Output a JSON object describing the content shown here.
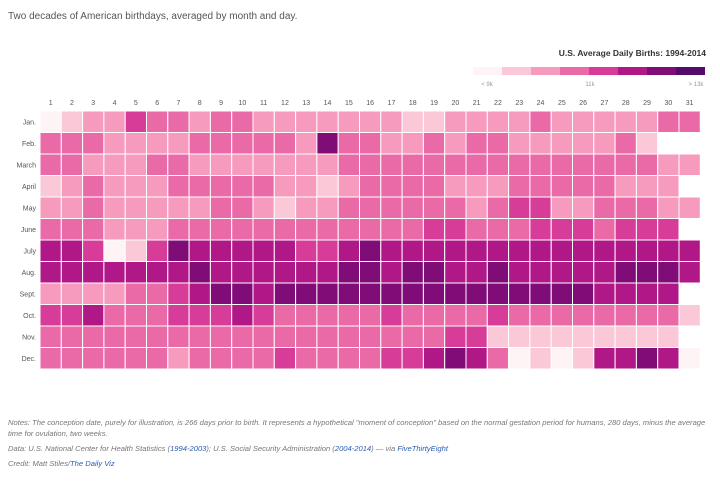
{
  "subtitle": "Two decades of American birthdays, averaged by month and day.",
  "colors": {
    "scale": [
      "#fef4f5",
      "#fbc8d8",
      "#f69bbd",
      "#ea6aa8",
      "#d63c98",
      "#b01887",
      "#800c78",
      "#560b6c"
    ],
    "empty": "#ffffff",
    "grid_line": "#ffffff"
  },
  "chart_data": {
    "type": "heatmap",
    "title": "U.S. Average Daily Births: 1994-2014",
    "x_labels": [
      "1",
      "2",
      "3",
      "4",
      "5",
      "6",
      "7",
      "8",
      "9",
      "10",
      "11",
      "12",
      "13",
      "14",
      "15",
      "16",
      "17",
      "18",
      "19",
      "20",
      "21",
      "22",
      "23",
      "24",
      "25",
      "26",
      "27",
      "28",
      "29",
      "30",
      "31"
    ],
    "y_labels": [
      "Jan.",
      "Feb.",
      "March",
      "April",
      "May",
      "June",
      "July",
      "Aug.",
      "Sept.",
      "Oct.",
      "Nov.",
      "Dec."
    ],
    "legend": {
      "min_label": "< 9k",
      "mid_label": "11k",
      "max_label": "> 13k",
      "placement": "top-right"
    },
    "value_levels": "0 = lowest (< 9k) … 7 = highest (> 13k); null = no date",
    "values": [
      [
        0,
        1,
        2,
        2,
        4,
        3,
        3,
        2,
        3,
        3,
        2,
        2,
        2,
        2,
        2,
        2,
        2,
        1,
        1,
        2,
        2,
        2,
        2,
        3,
        2,
        2,
        2,
        2,
        2,
        3,
        3
      ],
      [
        3,
        3,
        3,
        2,
        2,
        2,
        2,
        3,
        3,
        3,
        3,
        3,
        2,
        6,
        3,
        3,
        2,
        2,
        3,
        2,
        3,
        3,
        2,
        2,
        2,
        2,
        2,
        3,
        1,
        null,
        null
      ],
      [
        3,
        3,
        2,
        2,
        2,
        3,
        3,
        2,
        2,
        2,
        2,
        2,
        2,
        2,
        3,
        3,
        3,
        3,
        3,
        3,
        3,
        3,
        3,
        3,
        3,
        3,
        3,
        3,
        3,
        2,
        2
      ],
      [
        1,
        2,
        3,
        2,
        2,
        2,
        3,
        3,
        3,
        3,
        3,
        2,
        2,
        1,
        2,
        3,
        3,
        3,
        3,
        2,
        2,
        2,
        3,
        3,
        3,
        3,
        3,
        2,
        2,
        2,
        null
      ],
      [
        2,
        2,
        3,
        2,
        2,
        2,
        2,
        2,
        3,
        3,
        2,
        1,
        2,
        2,
        3,
        3,
        3,
        3,
        3,
        3,
        2,
        3,
        4,
        4,
        2,
        2,
        3,
        3,
        3,
        2,
        2
      ],
      [
        3,
        3,
        3,
        2,
        2,
        2,
        3,
        3,
        3,
        3,
        3,
        3,
        3,
        3,
        3,
        3,
        3,
        3,
        4,
        4,
        3,
        3,
        3,
        4,
        4,
        4,
        3,
        4,
        4,
        4,
        null
      ],
      [
        5,
        5,
        4,
        0,
        1,
        4,
        6,
        5,
        5,
        5,
        5,
        5,
        4,
        4,
        5,
        6,
        5,
        5,
        5,
        5,
        5,
        5,
        5,
        5,
        5,
        5,
        5,
        5,
        5,
        5,
        5
      ],
      [
        5,
        5,
        5,
        5,
        5,
        5,
        5,
        6,
        5,
        5,
        5,
        5,
        5,
        5,
        6,
        6,
        5,
        6,
        6,
        5,
        5,
        6,
        5,
        5,
        5,
        5,
        5,
        6,
        6,
        6,
        5
      ],
      [
        2,
        2,
        2,
        2,
        3,
        3,
        4,
        5,
        6,
        6,
        5,
        6,
        6,
        6,
        6,
        6,
        6,
        6,
        6,
        6,
        6,
        6,
        6,
        6,
        6,
        6,
        5,
        5,
        5,
        5,
        null
      ],
      [
        4,
        4,
        5,
        3,
        3,
        3,
        4,
        4,
        4,
        5,
        4,
        3,
        3,
        3,
        3,
        3,
        4,
        3,
        3,
        3,
        3,
        4,
        3,
        3,
        3,
        3,
        3,
        3,
        3,
        3,
        1
      ],
      [
        3,
        3,
        3,
        3,
        3,
        3,
        3,
        3,
        3,
        3,
        3,
        3,
        3,
        3,
        3,
        3,
        3,
        3,
        3,
        4,
        4,
        1,
        1,
        1,
        1,
        1,
        1,
        1,
        1,
        1,
        null
      ],
      [
        3,
        3,
        3,
        3,
        3,
        3,
        2,
        3,
        3,
        3,
        3,
        4,
        3,
        3,
        3,
        3,
        4,
        4,
        5,
        6,
        5,
        3,
        0,
        1,
        0,
        1,
        5,
        5,
        6,
        5,
        0
      ]
    ]
  },
  "notes": {
    "line1": "Notes: The conception date, purely for illustration, is 266 days prior to birth. It represents a hypothetical \"moment of conception\" based on the normal gestation period for humans, 280 days, minus the average time for ovulation, two weeks.",
    "data_prefix": "Data: U.S. National Center for Health Statistics (",
    "data_link1": "1994-2003",
    "data_mid": "); U.S. Social Security Administration (",
    "data_link2": "2004-2014",
    "data_suffix": ") — via ",
    "data_link3": "FiveThirtyEight",
    "credit_prefix": "Credit: Matt Stiles/",
    "credit_link": "The Daily Viz"
  }
}
